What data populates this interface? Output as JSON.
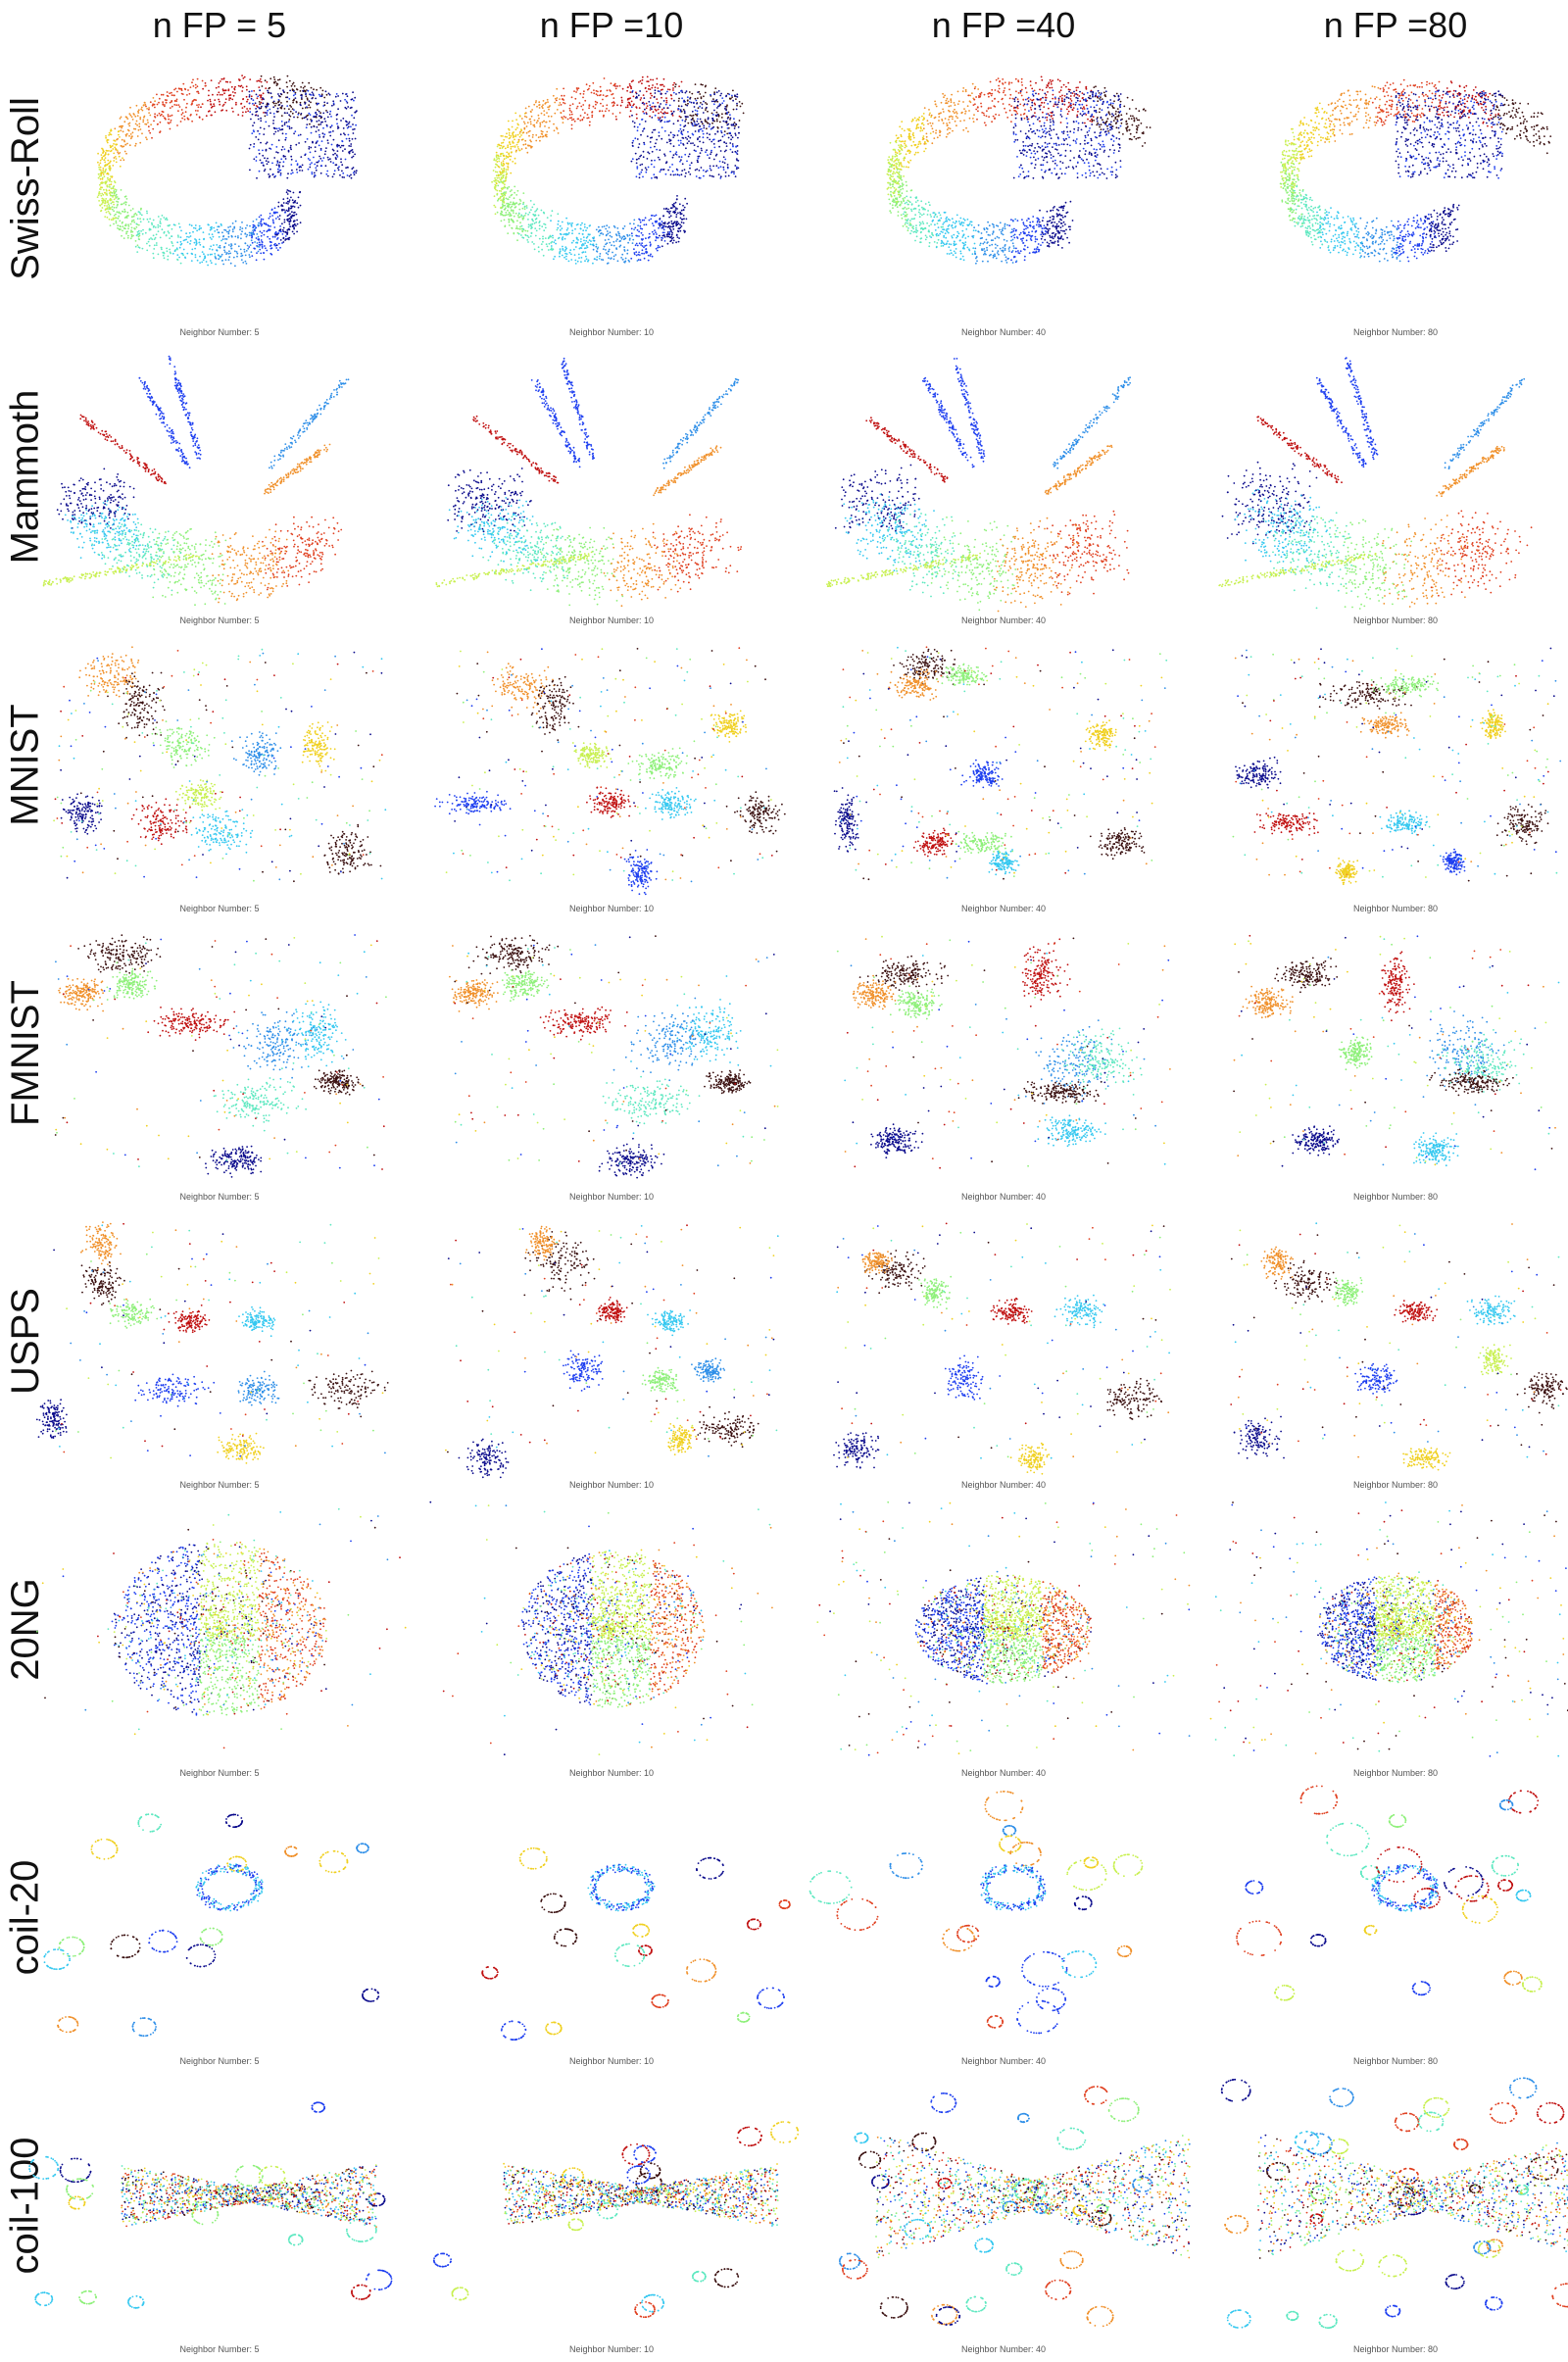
{
  "columns": [
    "n FP = 5",
    "n FP =10",
    "n FP =40",
    "n FP =80"
  ],
  "rows": [
    "Swiss-Roll",
    "Mammoth",
    "MNIST",
    "FMNIST",
    "USPS",
    "20NG",
    "coil-20",
    "coil-100"
  ],
  "captions": [
    "Neighbor Number: 5",
    "Neighbor Number: 10",
    "Neighbor Number: 40",
    "Neighbor Number: 80"
  ],
  "palette": [
    "#0b0b8c",
    "#1e3ff0",
    "#2f8fe8",
    "#35c8f0",
    "#5de8c0",
    "#8ef07a",
    "#c8f050",
    "#f0d020",
    "#f0902a",
    "#e04020",
    "#c01010",
    "#3a1010"
  ],
  "chart_data": {
    "type": "scatter",
    "grid": false,
    "legend": "none",
    "panels": [
      {
        "row": "Swiss-Roll",
        "neighbor_number": 5,
        "caption": "Neighbor Number: 5"
      },
      {
        "row": "Swiss-Roll",
        "neighbor_number": 10,
        "caption": "Neighbor Number: 10"
      },
      {
        "row": "Swiss-Roll",
        "neighbor_number": 40,
        "caption": "Neighbor Number: 40"
      },
      {
        "row": "Swiss-Roll",
        "neighbor_number": 80,
        "caption": "Neighbor Number: 80"
      },
      {
        "row": "Mammoth",
        "neighbor_number": 5,
        "caption": "Neighbor Number: 5"
      },
      {
        "row": "Mammoth",
        "neighbor_number": 10,
        "caption": "Neighbor Number: 10"
      },
      {
        "row": "Mammoth",
        "neighbor_number": 40,
        "caption": "Neighbor Number: 40"
      },
      {
        "row": "Mammoth",
        "neighbor_number": 80,
        "caption": "Neighbor Number: 80"
      },
      {
        "row": "MNIST",
        "neighbor_number": 5,
        "caption": "Neighbor Number: 5"
      },
      {
        "row": "MNIST",
        "neighbor_number": 10,
        "caption": "Neighbor Number: 10"
      },
      {
        "row": "MNIST",
        "neighbor_number": 40,
        "caption": "Neighbor Number: 40"
      },
      {
        "row": "MNIST",
        "neighbor_number": 80,
        "caption": "Neighbor Number: 80"
      },
      {
        "row": "FMNIST",
        "neighbor_number": 5,
        "caption": "Neighbor Number: 5"
      },
      {
        "row": "FMNIST",
        "neighbor_number": 10,
        "caption": "Neighbor Number: 10"
      },
      {
        "row": "FMNIST",
        "neighbor_number": 40,
        "caption": "Neighbor Number: 40"
      },
      {
        "row": "FMNIST",
        "neighbor_number": 80,
        "caption": "Neighbor Number: 80"
      },
      {
        "row": "USPS",
        "neighbor_number": 5,
        "caption": "Neighbor Number: 5"
      },
      {
        "row": "USPS",
        "neighbor_number": 10,
        "caption": "Neighbor Number: 10"
      },
      {
        "row": "USPS",
        "neighbor_number": 40,
        "caption": "Neighbor Number: 40"
      },
      {
        "row": "USPS",
        "neighbor_number": 80,
        "caption": "Neighbor Number: 80"
      },
      {
        "row": "20NG",
        "neighbor_number": 5,
        "caption": "Neighbor Number: 5"
      },
      {
        "row": "20NG",
        "neighbor_number": 10,
        "caption": "Neighbor Number: 10"
      },
      {
        "row": "20NG",
        "neighbor_number": 40,
        "caption": "Neighbor Number: 40"
      },
      {
        "row": "20NG",
        "neighbor_number": 80,
        "caption": "Neighbor Number: 80"
      },
      {
        "row": "coil-20",
        "neighbor_number": 5,
        "caption": "Neighbor Number: 5"
      },
      {
        "row": "coil-20",
        "neighbor_number": 10,
        "caption": "Neighbor Number: 10"
      },
      {
        "row": "coil-20",
        "neighbor_number": 40,
        "caption": "Neighbor Number: 40"
      },
      {
        "row": "coil-20",
        "neighbor_number": 80,
        "caption": "Neighbor Number: 80"
      },
      {
        "row": "coil-100",
        "neighbor_number": 5,
        "caption": "Neighbor Number: 5"
      },
      {
        "row": "coil-100",
        "neighbor_number": 10,
        "caption": "Neighbor Number: 10"
      },
      {
        "row": "coil-100",
        "neighbor_number": 40,
        "caption": "Neighbor Number: 40"
      },
      {
        "row": "coil-100",
        "neighbor_number": 80,
        "caption": "Neighbor Number: 80"
      }
    ]
  }
}
